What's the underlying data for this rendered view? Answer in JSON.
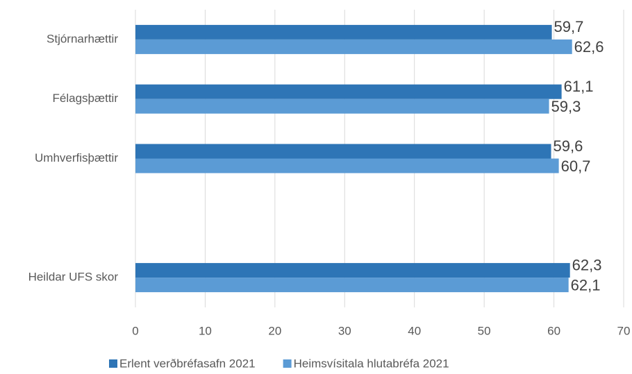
{
  "chart_data": {
    "type": "hbar",
    "categories": [
      "Stjórnarhættir",
      "Félagsþættir",
      "Umhverfisþættir",
      null,
      "Heildar UFS skor"
    ],
    "series": [
      {
        "name": "Erlent verðbréfasafn 2021",
        "color": "#2e75b6",
        "values": [
          59.7,
          61.1,
          59.6,
          null,
          62.3
        ],
        "value_labels": [
          "59,7",
          "61,1",
          "59,6",
          null,
          "62,3"
        ]
      },
      {
        "name": "Heimsvísitala hlutabréfa 2021",
        "color": "#5b9bd5",
        "values": [
          62.6,
          59.3,
          60.7,
          null,
          62.1
        ],
        "value_labels": [
          "62,6",
          "59,3",
          "60,7",
          null,
          "62,1"
        ]
      }
    ],
    "xlim": [
      0,
      70
    ],
    "xticks": [
      0,
      10,
      20,
      30,
      40,
      50,
      60,
      70
    ],
    "grid": true,
    "legend": "bottom"
  }
}
